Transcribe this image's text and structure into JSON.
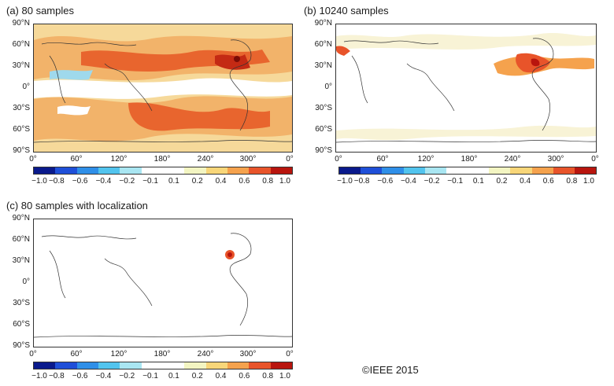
{
  "panels": [
    {
      "id": "a",
      "title": "(a) 80 samples"
    },
    {
      "id": "b",
      "title": "(b) 10240 samples"
    },
    {
      "id": "c",
      "title": "(c) 80 samples with localization"
    }
  ],
  "lat_ticks": [
    "90°N",
    "60°N",
    "30°N",
    "0°",
    "30°S",
    "60°S",
    "90°S"
  ],
  "lon_ticks": [
    "0°",
    "60°",
    "120°",
    "180°",
    "240°",
    "300°",
    "0°"
  ],
  "colorbar_ticks": [
    "−1.0",
    "−0.8",
    "−0.6",
    "−0.4",
    "−0.2",
    "−0.1",
    "0.1",
    "0.2",
    "0.4",
    "0.6",
    "0.8",
    "1.0"
  ],
  "colorbar_colors": [
    "#0a1a8c",
    "#1f4fd8",
    "#2f8fe8",
    "#52c4ee",
    "#a9e6f2",
    "#ffffff",
    "#ffffff",
    "#f3f5c2",
    "#f8d679",
    "#f5a24d",
    "#e8542a",
    "#b8150e"
  ],
  "copyright": "©IEEE 2015"
}
